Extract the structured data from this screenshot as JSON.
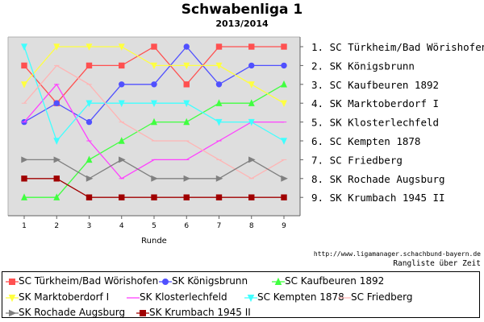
{
  "title": "Schwabenliga 1",
  "subtitle": "2013/2014",
  "source_url": "http://www.ligamanager.schachbund-bayern.de",
  "footer_note": "Rangliste über Zeit",
  "chart_data": {
    "type": "line",
    "title": "Schwabenliga 1",
    "subtitle": "2013/2014",
    "xlabel": "Runde",
    "ylabel": "",
    "x": [
      1,
      2,
      3,
      4,
      5,
      6,
      7,
      8,
      9
    ],
    "xlim": [
      0.5,
      9.5
    ],
    "y_inverted": true,
    "ylim": [
      1,
      9
    ],
    "grid": false,
    "legend_position": "bottom",
    "rank_labels": [
      "1. SC Türkheim/Bad Wörishofen",
      "2. SK Königsbrunn",
      "3. SC Kaufbeuren 1892",
      "4. SK Marktoberdorf I",
      "5. SK Klosterlechfeld",
      "6. SC Kempten 1878",
      "7. SC Friedberg",
      "8. SK Rochade Augsburg",
      "9. SK Krumbach 1945 II"
    ],
    "series": [
      {
        "name": "SC Türkheim/Bad Wörishofen",
        "color": "#ff5050",
        "marker": "square",
        "values": [
          2,
          4,
          2,
          2,
          1,
          3,
          1,
          1,
          1
        ]
      },
      {
        "name": "SK Königsbrunn",
        "color": "#5050ff",
        "marker": "circle",
        "values": [
          5,
          4,
          5,
          3,
          3,
          1,
          3,
          2,
          2
        ]
      },
      {
        "name": "SC Kaufbeuren 1892",
        "color": "#40ff40",
        "marker": "triangle-up",
        "values": [
          9,
          9,
          7,
          6,
          5,
          5,
          4,
          4,
          3
        ]
      },
      {
        "name": "SK Marktoberdorf I",
        "color": "#ffff40",
        "marker": "triangle-down",
        "values": [
          3,
          1,
          1,
          1,
          2,
          2,
          2,
          3,
          4
        ]
      },
      {
        "name": "SK Klosterlechfeld",
        "color": "#ff40ff",
        "marker": "line-dash",
        "values": [
          5,
          3,
          6,
          8,
          7,
          7,
          6,
          5,
          5
        ]
      },
      {
        "name": "SC Kempten 1878",
        "color": "#40ffff",
        "marker": "triangle-down",
        "values": [
          1,
          6,
          4,
          4,
          4,
          4,
          5,
          5,
          6
        ]
      },
      {
        "name": "SC Friedberg",
        "color": "#ffb4b4",
        "marker": "line-dash",
        "values": [
          4,
          2,
          3,
          5,
          6,
          6,
          7,
          8,
          7
        ]
      },
      {
        "name": "SK Rochade Augsburg",
        "color": "#808080",
        "marker": "triangle-right",
        "values": [
          7,
          7,
          8,
          7,
          8,
          8,
          8,
          7,
          8
        ]
      },
      {
        "name": "SK Krumbach 1945 II",
        "color": "#a00000",
        "marker": "square",
        "values": [
          8,
          8,
          9,
          9,
          9,
          9,
          9,
          9,
          9
        ]
      }
    ]
  }
}
